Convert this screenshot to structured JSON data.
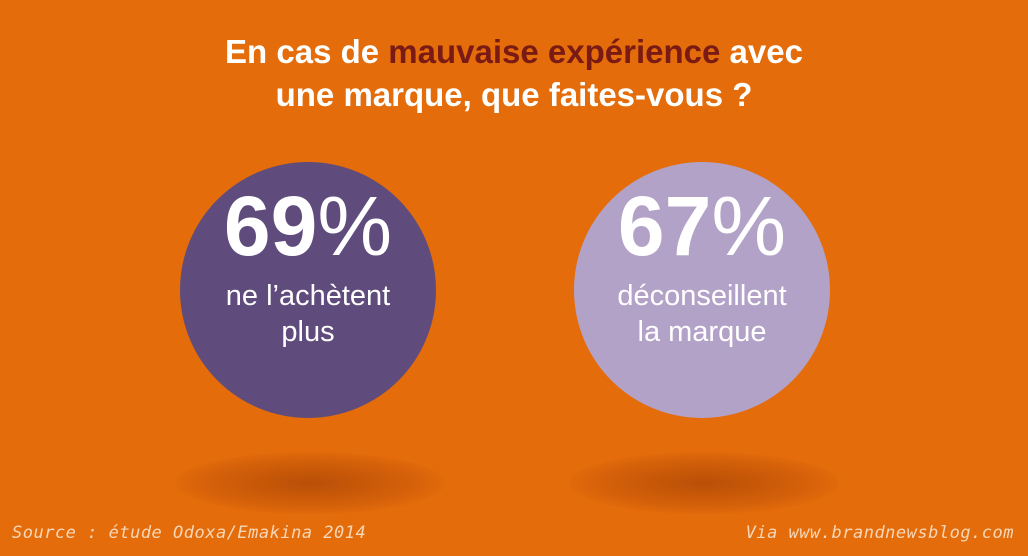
{
  "title": {
    "line1_before": "En cas de ",
    "line1_highlight": "mauvaise expérience",
    "line1_after": " avec",
    "line2": "une marque, que faites-vous ?"
  },
  "stats": [
    {
      "value": "69",
      "sign": "%",
      "label_line1": "ne l’achètent",
      "label_line2": "plus",
      "color": "#5f4b7c"
    },
    {
      "value": "67",
      "sign": "%",
      "label_line1": "déconseillent",
      "label_line2": "la marque",
      "color": "#b3a2c8"
    }
  ],
  "footer": {
    "source": "Source :  étude Odoxa/Emakina 2014",
    "via": "Via www.brandnewsblog.com"
  }
}
